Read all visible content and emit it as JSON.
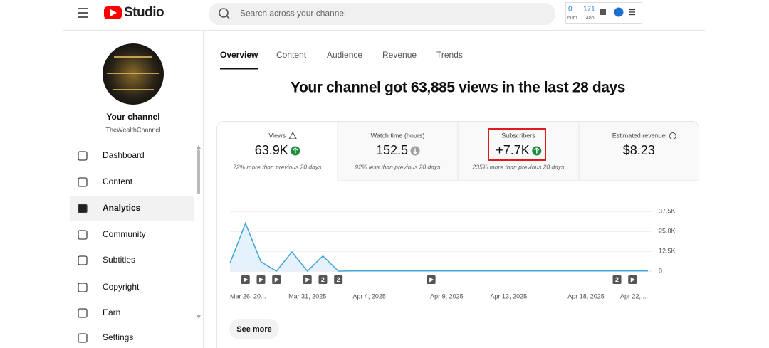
{
  "header": {
    "logo": "Studio",
    "search_placeholder": "Search across your channel",
    "stats": {
      "realtime_value": "0",
      "realtime_label": "60m",
      "recent_value": "171",
      "recent_label": "48h"
    }
  },
  "sidebar": {
    "channel_title": "Your channel",
    "channel_name": "TheWealthChannel",
    "nav": [
      "Dashboard",
      "Content",
      "Analytics",
      "Community",
      "Subtitles",
      "Copyright",
      "Earn",
      "Settings"
    ],
    "active_nav": 2
  },
  "tabs": [
    "Overview",
    "Content",
    "Audience",
    "Revenue",
    "Trends"
  ],
  "headline": "Your channel got 63,885 views in the last 28 days",
  "metrics": [
    {
      "label": "Views",
      "value": "63.9K",
      "trend": "up",
      "note": "72% more than previous 28 days"
    },
    {
      "label": "Watch time (hours)",
      "value": "152.5",
      "trend": "down",
      "note": "92% less than previous 28 days"
    },
    {
      "label": "Subscribers",
      "value": "+7.7K",
      "trend": "up",
      "note": "235% more than previous 28 days"
    },
    {
      "label": "Estimated revenue",
      "value": "$8.23",
      "trend": null,
      "note": null
    }
  ],
  "chart_data": {
    "type": "line",
    "categories": [
      "Mar 26, 20...",
      null,
      null,
      null,
      null,
      "Mar 31, 2025",
      null,
      null,
      null,
      "Apr 4, 2025",
      null,
      null,
      null,
      null,
      "Apr 9, 2025",
      null,
      null,
      null,
      "Apr 13, 2025",
      null,
      null,
      null,
      null,
      "Apr 18, 2025",
      null,
      null,
      null,
      "Apr 22, ..."
    ],
    "series": [
      {
        "name": "Views",
        "color": "#41a5d8",
        "values": [
          5000,
          30000,
          5800,
          0,
          12000,
          0,
          9500,
          0,
          100,
          100,
          100,
          100,
          100,
          100,
          100,
          100,
          100,
          100,
          100,
          100,
          100,
          100,
          100,
          100,
          100,
          100,
          100,
          100
        ]
      }
    ],
    "ylim": [
      0,
      37500
    ],
    "yticks": [
      0,
      {
        "value": 12500,
        "label": "12.5K"
      },
      {
        "value": 25000,
        "label": "25.0K"
      },
      {
        "value": 37500,
        "label": "37.5K"
      }
    ],
    "grid": true,
    "video_markers": [
      {
        "x_index": 1
      },
      {
        "x_index": 2
      },
      {
        "x_index": 3
      },
      {
        "x_index": 5
      },
      {
        "x_index": 6,
        "label": "2"
      },
      {
        "x_index": 7,
        "label": "2"
      },
      {
        "x_index": 13
      },
      {
        "x_index": 25,
        "label": "2"
      },
      {
        "x_index": 26
      }
    ]
  },
  "see_more": "See more"
}
